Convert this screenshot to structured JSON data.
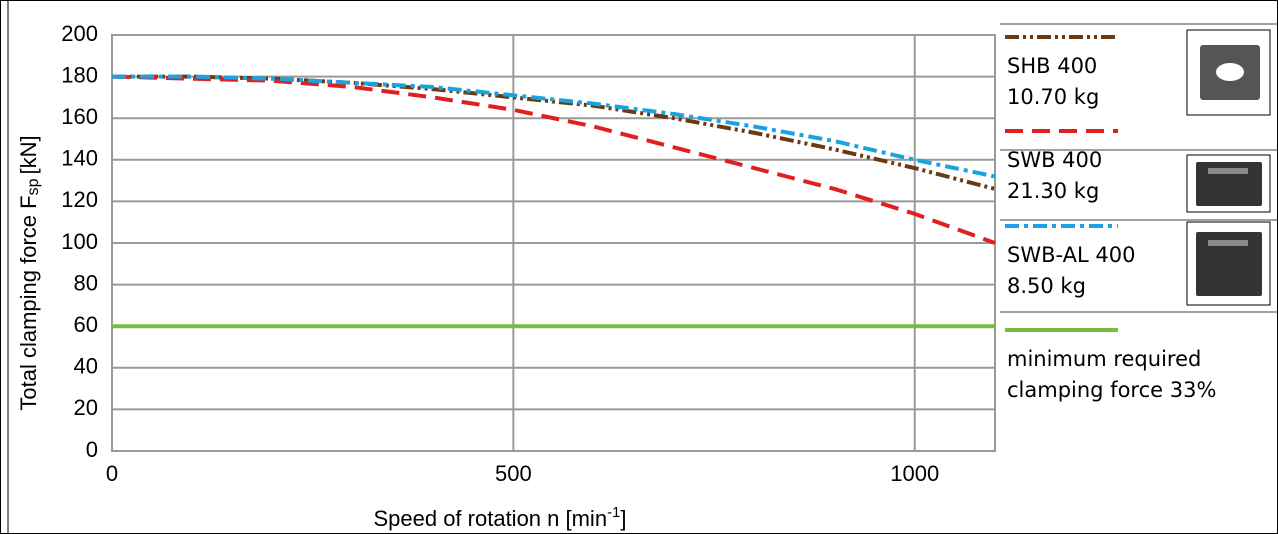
{
  "chart_data": {
    "type": "line",
    "ylabel": {
      "text": "Total clamping force F",
      "sub": "sp",
      "unit": "[kN]"
    },
    "xlabel": {
      "text": "Speed of rotation n [min",
      "sup": "-1",
      "end": "]"
    },
    "x": [
      0,
      100,
      200,
      300,
      400,
      500,
      600,
      700,
      800,
      900,
      1000,
      1100
    ],
    "series": [
      {
        "name": "SHB 400",
        "subtitle": "10.70 kg",
        "color": "#6b3a10",
        "dash": "14,4,3,4,3,4",
        "values": [
          180,
          180,
          179,
          177,
          174,
          170,
          166,
          160,
          153,
          145,
          136,
          126
        ]
      },
      {
        "name": "SWB 400",
        "subtitle": "21.30 kg",
        "color": "#e02020",
        "dash": "18,9",
        "values": [
          180,
          179,
          178,
          175,
          170,
          164,
          156,
          146,
          136,
          126,
          114,
          100
        ]
      },
      {
        "name": "SWB-AL 400",
        "subtitle": "8.50 kg",
        "color": "#1aa3e0",
        "dash": "14,5,4,5",
        "values": [
          180,
          180,
          179,
          177,
          175,
          171,
          167,
          162,
          156,
          149,
          140,
          132
        ]
      },
      {
        "name": "minimum required",
        "subtitle": "clamping force 33%",
        "color": "#77bb44",
        "dash": "",
        "values": [
          60,
          60,
          60,
          60,
          60,
          60,
          60,
          60,
          60,
          60,
          60,
          60
        ]
      }
    ],
    "xlim": [
      0,
      1100
    ],
    "xticks": [
      0,
      500,
      1000
    ],
    "ylim": [
      0,
      200
    ],
    "yticks": [
      0,
      20,
      40,
      60,
      80,
      100,
      120,
      140,
      160,
      180,
      200
    ],
    "grid": true
  }
}
